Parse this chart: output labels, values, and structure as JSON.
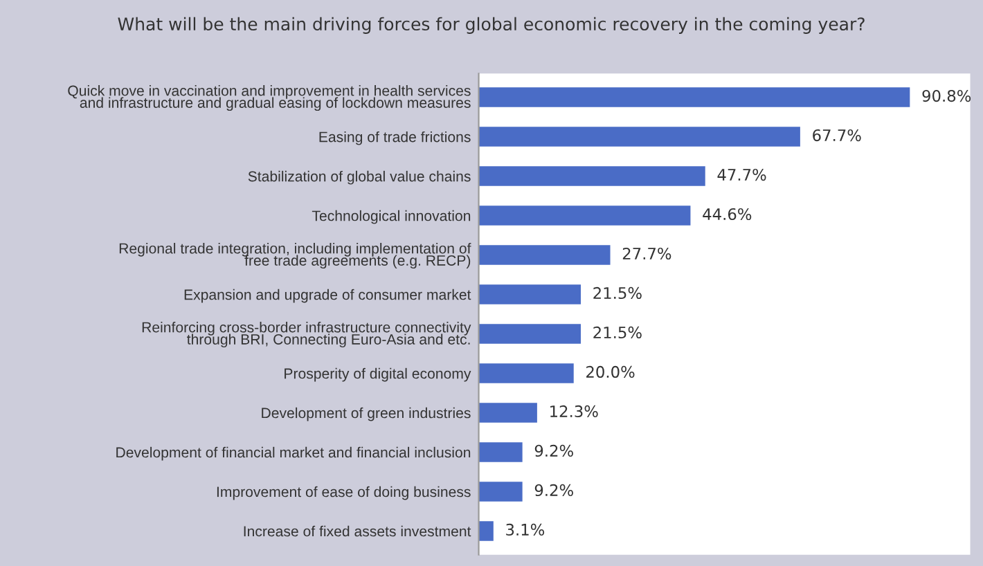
{
  "chart_data": {
    "type": "bar",
    "orientation": "horizontal",
    "title": "What will be the main driving forces for global economic recovery in the coming year?",
    "categories": [
      "Quick move in vaccination and improvement in health services\nand infrastructure and gradual easing of lockdown measures",
      "Easing of trade frictions",
      "Stabilization of global value chains",
      "Technological innovation",
      "Regional trade integration, including implementation of\nfree trade agreements (e.g. RECP)",
      "Expansion and upgrade of consumer market",
      "Reinforcing cross-border infrastructure connectivity\nthrough BRI, Connecting Euro-Asia and etc.",
      "Prosperity of digital economy",
      "Development of green industries",
      "Development of financial market and financial inclusion",
      "Improvement of ease of doing business",
      "Increase of fixed assets investment"
    ],
    "values": [
      90.8,
      67.7,
      47.7,
      44.6,
      27.7,
      21.5,
      21.5,
      20.0,
      12.3,
      9.2,
      9.2,
      3.1
    ],
    "value_labels": [
      "90.8%",
      "67.7%",
      "47.7%",
      "44.6%",
      "27.7%",
      "21.5%",
      "21.5%",
      "20.0%",
      "12.3%",
      "9.2%",
      "9.2%",
      "3.1%"
    ],
    "color": "#4a6cc6",
    "grid": false,
    "legend": false
  }
}
